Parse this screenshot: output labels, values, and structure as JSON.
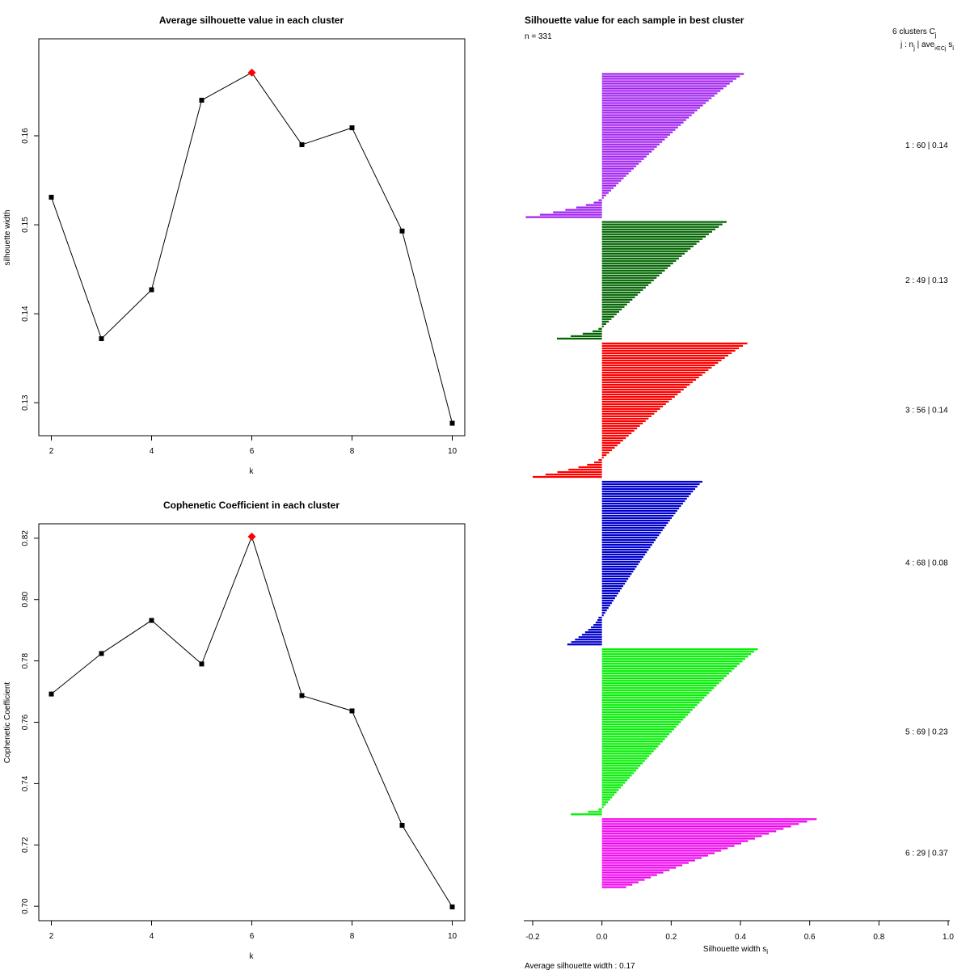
{
  "chart_data": [
    {
      "type": "line",
      "title": "Average silhouette value in each cluster",
      "xlabel": "k",
      "ylabel": "silhouette width",
      "x": [
        2,
        3,
        4,
        5,
        6,
        7,
        8,
        9,
        10
      ],
      "y": [
        0.1531,
        0.1372,
        0.1427,
        0.164,
        0.1671,
        0.159,
        0.1609,
        0.1493,
        0.1277
      ],
      "highlight_index": 4,
      "highlight_color": "#ff0000",
      "xticks": [
        2,
        4,
        6,
        8,
        10
      ],
      "yticks": [
        0.13,
        0.14,
        0.15,
        0.16
      ],
      "ytick_labels": [
        "0.13",
        "0.14",
        "0.15",
        "0.16"
      ],
      "xlim": [
        1.75,
        10.25
      ],
      "ylim": [
        0.1263,
        0.1709
      ]
    },
    {
      "type": "line",
      "title": "Cophenetic Coefficient in each cluster",
      "xlabel": "k",
      "ylabel": "Cophenetic Coefficient",
      "x": [
        2,
        3,
        4,
        5,
        6,
        7,
        8,
        9,
        10
      ],
      "y": [
        0.7692,
        0.7824,
        0.7932,
        0.779,
        0.8205,
        0.7687,
        0.7637,
        0.7264,
        0.6998
      ],
      "highlight_index": 4,
      "highlight_color": "#ff0000",
      "xticks": [
        2,
        4,
        6,
        8,
        10
      ],
      "yticks": [
        0.7,
        0.72,
        0.74,
        0.76,
        0.78,
        0.8,
        0.82
      ],
      "ytick_labels": [
        "0.70",
        "0.72",
        "0.74",
        "0.76",
        "0.78",
        "0.80",
        "0.82"
      ],
      "xlim": [
        1.75,
        10.25
      ],
      "ylim": [
        0.6953,
        0.8247
      ]
    },
    {
      "type": "bar",
      "orientation": "horizontal",
      "title": "Silhouette value for each sample in best cluster",
      "subtitle": "n = 331",
      "xlabel": "Silhouette width s",
      "xlabel_subscript": "i",
      "footer": "Average silhouette width :  0.17",
      "xticks": [
        -0.2,
        0.0,
        0.2,
        0.4,
        0.6,
        0.8,
        1.0
      ],
      "xtick_labels": [
        "-0.2",
        "0.0",
        "0.2",
        "0.4",
        "0.6",
        "0.8",
        "1.0"
      ],
      "xlim": [
        -0.2,
        1.0
      ],
      "legend_header": "6  clusters  C",
      "legend_header_sub": "j",
      "legend_subheader": "j :  n",
      "legend_subheader_sub1": "j",
      "legend_subheader_mid": " | ave",
      "legend_subheader_sub2": "i∈Cj",
      "legend_subheader_end": " s",
      "legend_subheader_sub3": "i",
      "clusters": [
        {
          "id": 1,
          "n": 60,
          "avg": 0.14,
          "label": "1 :  60  |  0.14",
          "color": "#a020f0",
          "max": 0.41,
          "min": -0.22,
          "neg": 8
        },
        {
          "id": 2,
          "n": 49,
          "avg": 0.13,
          "label": "2 :  49  |  0.13",
          "color": "#006400",
          "max": 0.36,
          "min": -0.13,
          "neg": 5
        },
        {
          "id": 3,
          "n": 56,
          "avg": 0.14,
          "label": "3 :  56  |  0.14",
          "color": "#ff0000",
          "max": 0.42,
          "min": -0.2,
          "neg": 8
        },
        {
          "id": 4,
          "n": 68,
          "avg": 0.08,
          "label": "4 :  68  |  0.08",
          "color": "#0000cd",
          "max": 0.29,
          "min": -0.1,
          "neg": 12
        },
        {
          "id": 5,
          "n": 69,
          "avg": 0.23,
          "label": "5 :  69  |  0.23",
          "color": "#00ee00",
          "max": 0.45,
          "min": -0.09,
          "neg": 3
        },
        {
          "id": 6,
          "n": 29,
          "avg": 0.37,
          "label": "6 :  29  |  0.37",
          "color": "#ee00ee",
          "max": 0.62,
          "min": 0.07,
          "neg": 0
        }
      ]
    }
  ]
}
